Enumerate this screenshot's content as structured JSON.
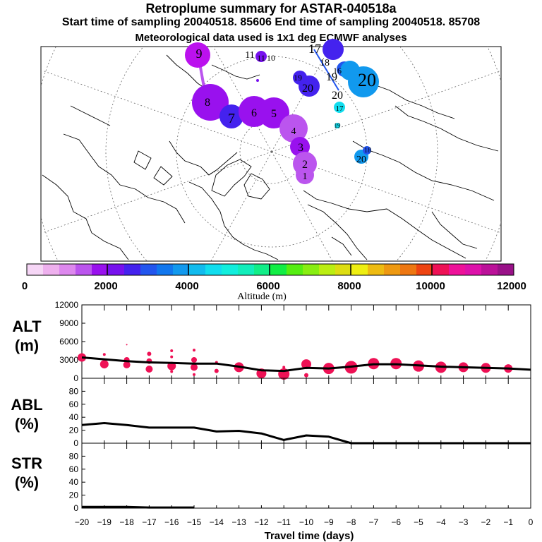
{
  "title_line1": "Retroplume summary for ASTAR-040518a",
  "title_line2": "Start time of sampling 20040518. 85606     End time of sampling 20040518. 85708",
  "title_line3": "Meteorological data used is 1x1 deg ECMWF analyses",
  "colorbar": {
    "label": "Altitude (m)",
    "ticks": [
      "0",
      "2000",
      "4000",
      "6000",
      "8000",
      "10000",
      "12000"
    ],
    "colors": [
      "#f6d6f6",
      "#eeb0ee",
      "#dd88ee",
      "#bb55ee",
      "#9911ee",
      "#7711ee",
      "#4422ee",
      "#2255ee",
      "#1177ee",
      "#1199ee",
      "#11bbee",
      "#11ddee",
      "#11eedd",
      "#11eebb",
      "#11ee88",
      "#11ee44",
      "#55ee11",
      "#88ee11",
      "#bbee11",
      "#dddd11",
      "#eeee11",
      "#eebb11",
      "#ee9911",
      "#ee7711",
      "#ee4411",
      "#ee1155",
      "#ee1199",
      "#dd11aa",
      "#bb1199",
      "#991188"
    ]
  },
  "map": {
    "labels": [
      {
        "text": "9",
        "color": "#9911ee"
      },
      {
        "text": "11",
        "color": "#7711ee"
      },
      {
        "text": "11",
        "color": "#7711ee"
      },
      {
        "text": "10",
        "color": "#7711ee"
      },
      {
        "text": "8",
        "color": "#9911ee"
      },
      {
        "text": "7",
        "color": "#4422ee"
      },
      {
        "text": "6",
        "color": "#9911ee"
      },
      {
        "text": "5",
        "color": "#9911ee"
      },
      {
        "text": "4",
        "color": "#bb55ee"
      },
      {
        "text": "3",
        "color": "#9911ee"
      },
      {
        "text": "2",
        "color": "#bb55ee"
      },
      {
        "text": "1",
        "color": "#bb55ee"
      },
      {
        "text": "17",
        "color": "#4422ee"
      },
      {
        "text": "18",
        "color": "#2255ee"
      },
      {
        "text": "16",
        "color": "#2255ee"
      },
      {
        "text": "19",
        "color": "#2255ee"
      },
      {
        "text": "20",
        "color": "#1199ee"
      },
      {
        "text": "19",
        "color": "#4422ee"
      },
      {
        "text": "20",
        "color": "#4422ee"
      },
      {
        "text": "20",
        "color": "#1199ee"
      },
      {
        "text": "17",
        "color": "#11ddee"
      },
      {
        "text": "19",
        "color": "#11ddee"
      },
      {
        "text": "20",
        "color": "#1199ee"
      },
      {
        "text": "18",
        "color": "#2255ee"
      }
    ]
  },
  "chart_data": [
    {
      "type": "line",
      "panel": "ALT",
      "ylabel": "ALT\n(m)",
      "ylabel_line1": "ALT",
      "ylabel_line2": "(m)",
      "ylim": [
        0,
        12000
      ],
      "yticks": [
        "12000",
        "9000",
        "6000",
        "3000",
        "0"
      ],
      "x": [
        -20,
        -19,
        -18,
        -17,
        -16,
        -15,
        -14,
        -13,
        -12,
        -11,
        -10,
        -9,
        -8,
        -7,
        -6,
        -5,
        -4,
        -3,
        -2,
        -1,
        0
      ],
      "series": [
        {
          "name": "median altitude",
          "color": "#000000",
          "values": [
            3400,
            3100,
            2800,
            2600,
            2500,
            2400,
            2400,
            1900,
            1300,
            1200,
            1700,
            1600,
            1900,
            2300,
            2300,
            2100,
            1900,
            1800,
            1700,
            1600,
            1400
          ]
        }
      ],
      "clusters": [
        {
          "x": -20,
          "y": 3400,
          "r": 6
        },
        {
          "x": -19,
          "y": 3900,
          "r": 2
        },
        {
          "x": -19,
          "y": 2300,
          "r": 6
        },
        {
          "x": -18,
          "y": 5500,
          "r": 1
        },
        {
          "x": -18,
          "y": 3000,
          "r": 4
        },
        {
          "x": -18,
          "y": 2200,
          "r": 5
        },
        {
          "x": -17,
          "y": 4000,
          "r": 3
        },
        {
          "x": -17,
          "y": 2800,
          "r": 4
        },
        {
          "x": -17,
          "y": 1500,
          "r": 5
        },
        {
          "x": -16,
          "y": 4500,
          "r": 2
        },
        {
          "x": -16,
          "y": 3500,
          "r": 2
        },
        {
          "x": -16,
          "y": 2000,
          "r": 6
        },
        {
          "x": -16,
          "y": 1100,
          "r": 2
        },
        {
          "x": -15,
          "y": 4600,
          "r": 2
        },
        {
          "x": -15,
          "y": 3000,
          "r": 4
        },
        {
          "x": -15,
          "y": 1800,
          "r": 5
        },
        {
          "x": -15,
          "y": 600,
          "r": 2
        },
        {
          "x": -14,
          "y": 2600,
          "r": 2
        },
        {
          "x": -14,
          "y": 1200,
          "r": 3
        },
        {
          "x": -13,
          "y": 1800,
          "r": 7
        },
        {
          "x": -12,
          "y": 800,
          "r": 7
        },
        {
          "x": -11,
          "y": 700,
          "r": 8
        },
        {
          "x": -11,
          "y": 1800,
          "r": 2
        },
        {
          "x": -10,
          "y": 2300,
          "r": 7
        },
        {
          "x": -10,
          "y": 500,
          "r": 3
        },
        {
          "x": -9,
          "y": 1600,
          "r": 8
        },
        {
          "x": -8,
          "y": 1800,
          "r": 9
        },
        {
          "x": -7,
          "y": 2400,
          "r": 8
        },
        {
          "x": -6,
          "y": 2400,
          "r": 8
        },
        {
          "x": -5,
          "y": 2000,
          "r": 8
        },
        {
          "x": -4,
          "y": 1800,
          "r": 8
        },
        {
          "x": -3,
          "y": 1800,
          "r": 7
        },
        {
          "x": -2,
          "y": 1700,
          "r": 7
        },
        {
          "x": -1,
          "y": 1600,
          "r": 6
        }
      ]
    },
    {
      "type": "line",
      "panel": "ABL",
      "ylabel": "ABL\n(%)",
      "ylabel_line1": "ABL",
      "ylabel_line2": "(%)",
      "ylim": [
        0,
        100
      ],
      "yticks": [
        "80",
        "60",
        "40",
        "20",
        "0"
      ],
      "x": [
        -20,
        -19,
        -18,
        -17,
        -16,
        -15,
        -14,
        -13,
        -12,
        -11,
        -10,
        -9,
        -8,
        -7,
        -6,
        -5,
        -4,
        -3,
        -2,
        -1,
        0
      ],
      "series": [
        {
          "name": "ABL fraction",
          "color": "#000000",
          "values": [
            28,
            31,
            28,
            24,
            24,
            24,
            18,
            19,
            15,
            5,
            12,
            10,
            0,
            0,
            0,
            0,
            0,
            0,
            0,
            0,
            0
          ]
        }
      ]
    },
    {
      "type": "line",
      "panel": "STR",
      "ylabel": "STR\n(%)",
      "ylabel_line1": "STR",
      "ylabel_line2": "(%)",
      "ylim": [
        0,
        100
      ],
      "yticks": [
        "80",
        "60",
        "40",
        "20",
        "0"
      ],
      "x": [
        -20,
        -19,
        -18,
        -17,
        -16,
        -15
      ],
      "series": [
        {
          "name": "stratospheric fraction",
          "color": "#000000",
          "values": [
            2,
            2,
            2,
            1,
            1,
            1
          ]
        }
      ]
    }
  ],
  "xaxis": {
    "label": "Travel time (days)",
    "ticks": [
      "−20",
      "−19",
      "−18",
      "−17",
      "−16",
      "−15",
      "−14",
      "−13",
      "−12",
      "−11",
      "−10",
      "−9",
      "−8",
      "−7",
      "−6",
      "−5",
      "−4",
      "−3",
      "−2",
      "−1",
      "0"
    ]
  }
}
